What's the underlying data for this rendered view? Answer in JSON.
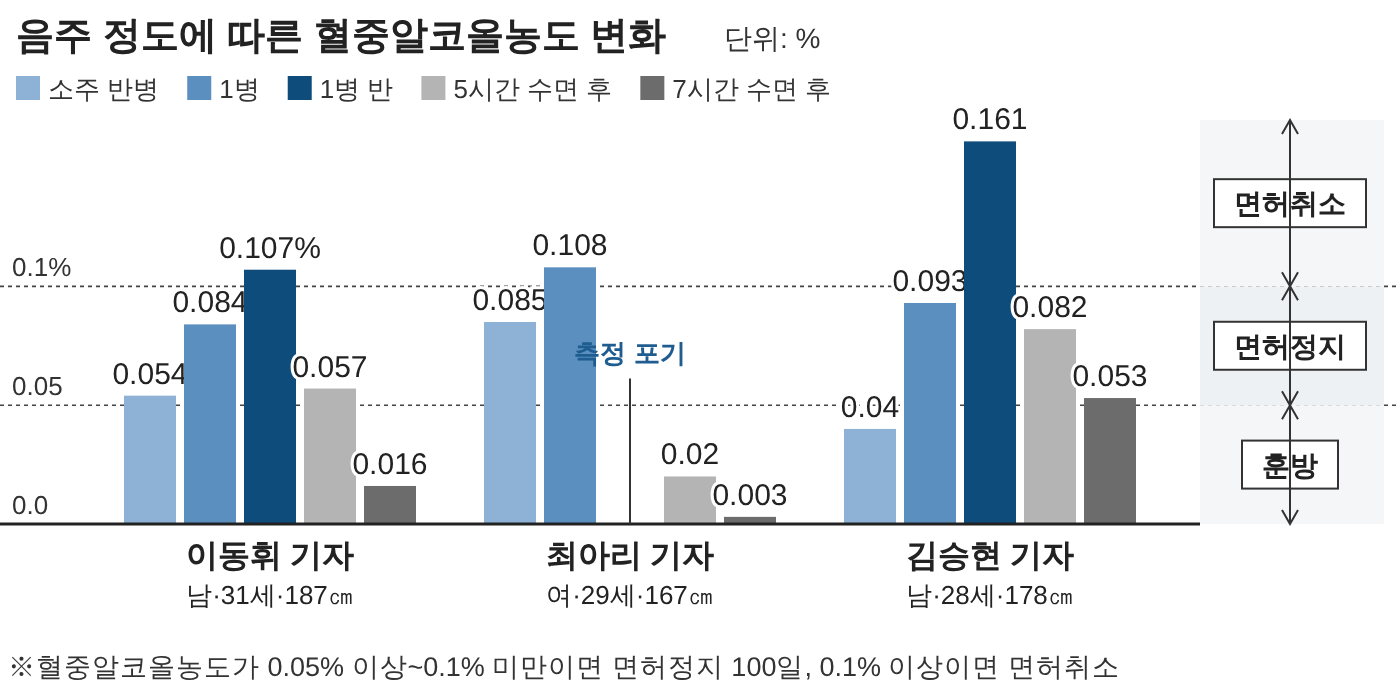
{
  "chart_data": {
    "type": "bar",
    "title": "음주 정도에 따른 혈중알코올농도 변화",
    "subtitle": "단위: %",
    "categories": [
      "이동휘 기자\n남·31세·187㎝",
      "최아리 기자\n여·29세·167㎝",
      "김승현 기자\n남·28세·178㎝"
    ],
    "series": [
      {
        "name": "소주 반병",
        "color": "#8db2d6",
        "values": [
          0.054,
          0.085,
          0.04
        ]
      },
      {
        "name": "1병",
        "color": "#5a8fc0",
        "values": [
          0.084,
          0.108,
          0.093
        ]
      },
      {
        "name": "1병 반",
        "color": "#0e4c7c",
        "values": [
          0.107,
          null,
          0.161
        ],
        "value_labels": [
          "0.107%",
          null,
          "0.161"
        ]
      },
      {
        "name": "5시간 수면 후",
        "color": "#b4b4b4",
        "values": [
          0.057,
          0.02,
          0.082
        ]
      },
      {
        "name": "7시간 수면 후",
        "color": "#6c6c6c",
        "values": [
          0.016,
          0.003,
          0.053
        ]
      }
    ],
    "ylim": [
      0,
      0.17
    ],
    "yticks": [
      {
        "value": 0,
        "label": "0.0"
      },
      0.05,
      {
        "value": 0.1,
        "label": "0.1%"
      }
    ],
    "grid": "y",
    "legend": "top",
    "data_labels": true,
    "bands": [
      {
        "axis": "y",
        "from": 0,
        "to": 0.05,
        "label": "훈방",
        "color": "#f4f6f8"
      },
      {
        "axis": "y",
        "from": 0.05,
        "to": 0.1,
        "label": "면허정지",
        "color": "#eef1f4"
      },
      {
        "axis": "y",
        "from": 0.1,
        "to": 0.17,
        "label": "면허취소",
        "color": "#f4f6f8"
      }
    ],
    "annotations": [
      "측정 포기",
      "※혈중알코올농도가 0.05% 이상~0.1% 미만이면 면허정지 100일, 0.1% 이상이면 면허취소"
    ]
  }
}
